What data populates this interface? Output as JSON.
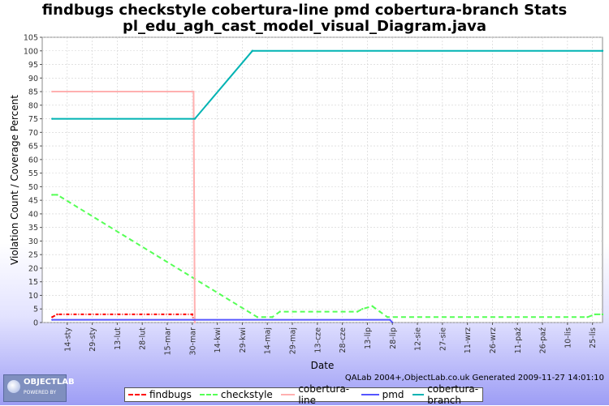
{
  "chart_data": {
    "type": "line",
    "title": "findbugs checkstyle cobertura-line pmd cobertura-branch  Stats",
    "subtitle": "pl_edu_agh_cast_model_visual_Diagram.java",
    "xlabel": "Date",
    "ylabel": "Violation Count / Coverage Percent",
    "ylim": [
      0,
      105
    ],
    "yticks": [
      "0",
      "5",
      "10",
      "15",
      "20",
      "25",
      "30",
      "35",
      "40",
      "45",
      "50",
      "55",
      "60",
      "65",
      "70",
      "75",
      "80",
      "85",
      "90",
      "95",
      "100",
      "105"
    ],
    "xticks": [
      "14-sty",
      "29-sty",
      "13-lut",
      "28-lut",
      "15-mar",
      "30-mar",
      "14-kwi",
      "29-kwi",
      "14-maj",
      "29-maj",
      "13-cze",
      "28-cze",
      "13-lip",
      "28-lip",
      "12-sie",
      "27-sie",
      "11-wrz",
      "26-wrz",
      "11-paź",
      "26-paź",
      "10-lis",
      "25-lis"
    ],
    "x_domain": [
      -1.0,
      21.4
    ],
    "grid": true,
    "legend_position": "bottom",
    "series": [
      {
        "name": "findbugs",
        "color": "#ff0000",
        "dash": "4,2,1,2",
        "points": [
          [
            -0.6,
            2
          ],
          [
            -0.4,
            3
          ],
          [
            5.0,
            3
          ],
          [
            5.05,
            1
          ]
        ]
      },
      {
        "name": "checkstyle",
        "color": "#55ff55",
        "dash": "6,4",
        "points": [
          [
            -0.6,
            47
          ],
          [
            -0.4,
            47
          ],
          [
            7.6,
            2
          ],
          [
            8.2,
            2
          ],
          [
            8.5,
            4
          ],
          [
            11.6,
            4
          ],
          [
            11.8,
            5
          ],
          [
            12.2,
            6
          ],
          [
            12.5,
            4
          ],
          [
            12.8,
            2
          ],
          [
            20.8,
            2
          ],
          [
            21.1,
            3
          ],
          [
            21.4,
            3
          ]
        ]
      },
      {
        "name": "cobertura-line",
        "color": "#ffb0b0",
        "dash": "",
        "points": [
          [
            -0.6,
            85
          ],
          [
            5.05,
            85
          ],
          [
            5.1,
            0
          ]
        ]
      },
      {
        "name": "pmd",
        "color": "#5555ff",
        "dash": "",
        "points": [
          [
            -0.6,
            1
          ],
          [
            12.9,
            1
          ],
          [
            13.0,
            0
          ]
        ]
      },
      {
        "name": "cobertura-branch",
        "color": "#00b3b3",
        "dash": "",
        "points": [
          [
            -0.6,
            75
          ],
          [
            5.1,
            75
          ],
          [
            7.4,
            100
          ],
          [
            21.4,
            100
          ]
        ]
      }
    ]
  },
  "footer": {
    "credit": "QALab 2004+,ObjectLab.co.uk Generated 2009-11-27 14:01:10"
  },
  "logo": {
    "main": "OBJECTLAB",
    "sub": "POWERED BY"
  }
}
